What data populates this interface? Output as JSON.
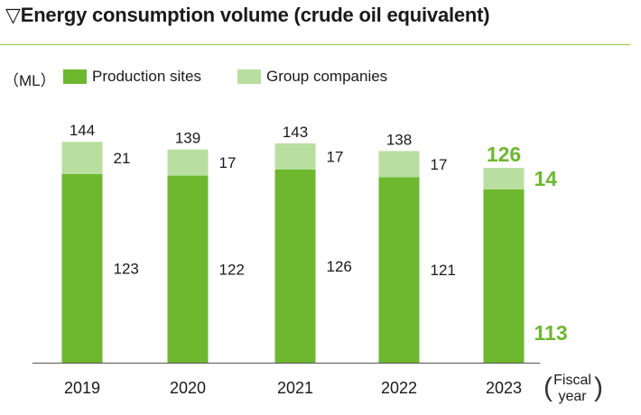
{
  "header": {
    "title": "▽Energy consumption volume (crude oil equivalent)"
  },
  "unit_label": "（ML）",
  "fiscal_label": {
    "line1": "Fiscal",
    "line2": "year",
    "open": "(",
    "close": ")"
  },
  "colors": {
    "production": "#6db82f",
    "group": "#b8dfa0",
    "highlight_text": "#6db82f",
    "rule": "#8cc63f"
  },
  "chart_data": {
    "type": "bar",
    "stacked": true,
    "categories": [
      "2019",
      "2020",
      "2021",
      "2022",
      "2023"
    ],
    "series": [
      {
        "name": "Production sites",
        "values": [
          123,
          122,
          126,
          121,
          113
        ]
      },
      {
        "name": "Group companies",
        "values": [
          21,
          17,
          17,
          17,
          14
        ]
      }
    ],
    "totals": [
      144,
      139,
      143,
      138,
      126
    ],
    "highlight_category": "2023",
    "legend_position": "top",
    "grid": false
  }
}
